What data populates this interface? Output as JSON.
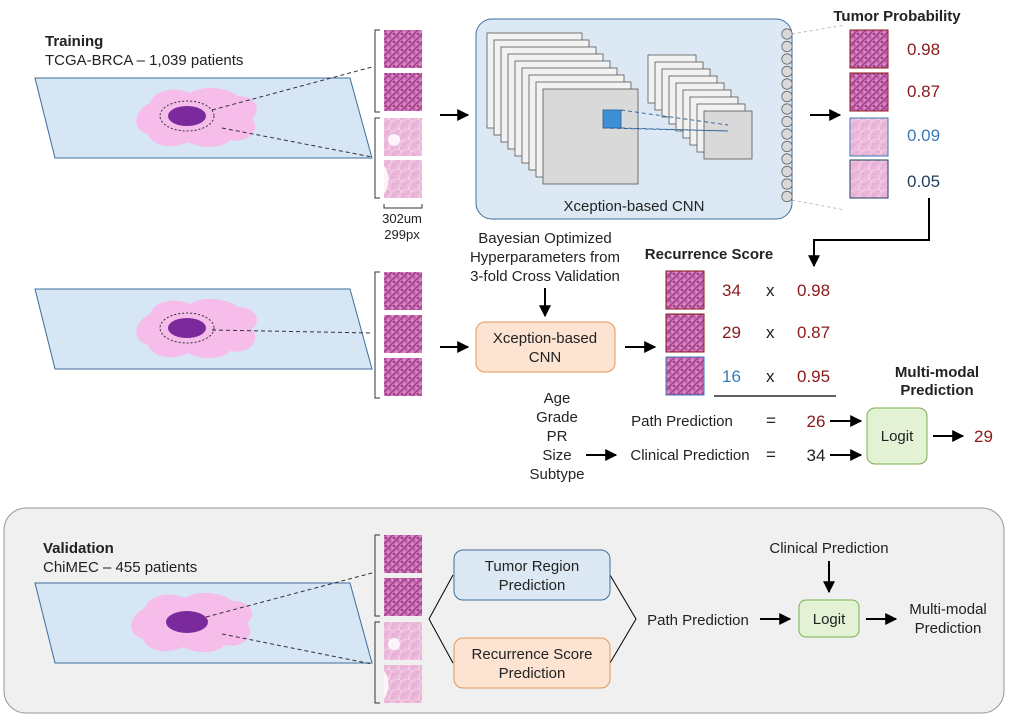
{
  "colors": {
    "dark_red": "#8b1a1a",
    "blue": "#3a7ab8",
    "navy": "#1f3d5c",
    "slide_fill": "#d6e6f4",
    "tissue_pink": "#f6bdea",
    "tumor_purple": "#7a2a9c",
    "cnn_box_fill": "#dce9f5",
    "orange_box_fill": "#fde4d2",
    "green_box_fill": "#e3f2d5",
    "validation_bg": "#f0f0f0"
  },
  "training": {
    "title": "Training",
    "subtitle": "TCGA-BRCA – 1,039 patients",
    "scale_um": "302um",
    "scale_px": "299px",
    "cnn_label": "Xception-based CNN"
  },
  "tumor_probability": {
    "title": "Tumor Probability",
    "values": [
      {
        "text": "0.98",
        "color": "dark_red"
      },
      {
        "text": "0.87",
        "color": "dark_red"
      },
      {
        "text": "0.09",
        "color": "blue"
      },
      {
        "text": "0.05",
        "color": "navy"
      }
    ]
  },
  "recurrence": {
    "hyperparams_lines": [
      "Bayesian Optimized",
      "Hyperparameters from",
      "3-fold Cross Validation"
    ],
    "cnn_lines": [
      "Xception-based",
      "CNN"
    ],
    "title": "Recurrence Score",
    "rows": [
      {
        "score": "34",
        "score_color": "dark_red",
        "times": "x",
        "prob": "0.98"
      },
      {
        "score": "29",
        "score_color": "dark_red",
        "times": "x",
        "prob": "0.87"
      },
      {
        "score": "16",
        "score_color": "blue",
        "times": "x",
        "prob": "0.95"
      }
    ]
  },
  "multimodal": {
    "title_lines": [
      "Multi-modal",
      "Prediction"
    ],
    "clinical_features": [
      "Age",
      "Grade",
      "PR",
      "Size",
      "Subtype"
    ],
    "path_label": "Path Prediction",
    "clinical_label": "Clinical Prediction",
    "equals": "=",
    "path_value": "26",
    "clinical_value": "34",
    "logit_label": "Logit",
    "output_value": "29"
  },
  "validation": {
    "title": "Validation",
    "subtitle": "ChiMEC – 455 patients",
    "tumor_region_lines": [
      "Tumor Region",
      "Prediction"
    ],
    "recurrence_lines": [
      "Recurrence Score",
      "Prediction"
    ],
    "path_label": "Path Prediction",
    "clinical_label": "Clinical Prediction",
    "logit_label": "Logit",
    "output_lines": [
      "Multi-modal",
      "Prediction"
    ]
  }
}
